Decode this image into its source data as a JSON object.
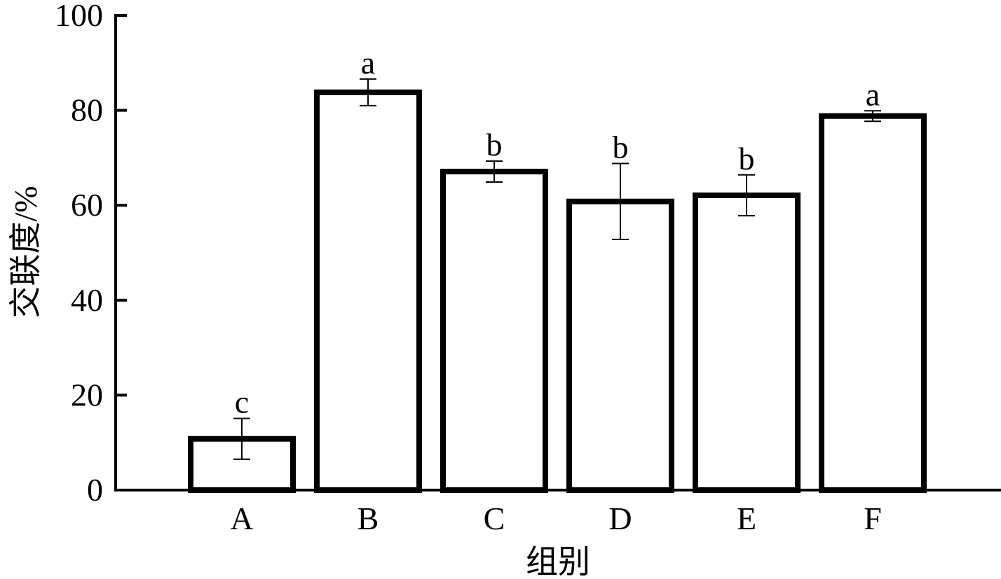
{
  "chart_data": {
    "type": "bar",
    "xlabel": "组别",
    "ylabel": "交联度/%",
    "categories": [
      "A",
      "B",
      "C",
      "D",
      "E",
      "F"
    ],
    "values": [
      10.8,
      83.8,
      67.1,
      60.8,
      62.1,
      78.8
    ],
    "errors": [
      4.3,
      2.8,
      2.2,
      8.0,
      4.3,
      1.1
    ],
    "annotations": [
      "c",
      "a",
      "b",
      "b",
      "b",
      "a"
    ],
    "color": "#ffffff",
    "edgecolor": "#000000",
    "ylim": [
      0,
      100
    ],
    "yticks": [
      0,
      20,
      40,
      60,
      80,
      100
    ]
  }
}
